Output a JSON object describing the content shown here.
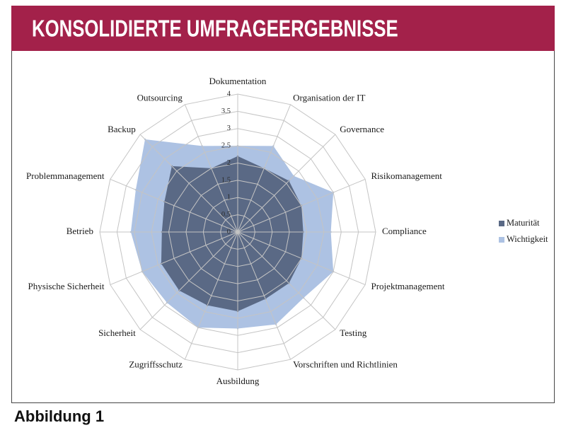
{
  "banner": {
    "title": "KONSOLIDIERTE UMFRAGEERGEBNISSE"
  },
  "caption": "Abbildung 1",
  "colors": {
    "banner": "#A3214A"
  },
  "chart_data": {
    "type": "radar",
    "categories": [
      "Dokumentation",
      "Organisation der IT",
      "Governance",
      "Risikomanagement",
      "Compliance",
      "Projektmanagement",
      "Testing",
      "Vorschriften und Richtlinien",
      "Ausbildung",
      "Zugriffsschutz",
      "Sicherheit",
      "Physische Sicherheit",
      "Betrieb",
      "Problemmanagement",
      "Backup",
      "Outsourcing"
    ],
    "r_ticks": [
      0,
      0.5,
      1,
      1.5,
      2,
      2.5,
      3,
      3.5,
      4
    ],
    "rlim": [
      0,
      4
    ],
    "grid": true,
    "legend_position": "right",
    "series": [
      {
        "name": "Maturität",
        "color": "#5A6985",
        "values": [
          2.2,
          2.0,
          2.1,
          2.0,
          1.9,
          2.0,
          2.1,
          2.1,
          2.3,
          2.3,
          2.4,
          2.4,
          2.2,
          2.3,
          2.7,
          2.0
        ]
      },
      {
        "name": "Wichtigkeit",
        "color": "#ADC2E3",
        "values": [
          2.5,
          2.7,
          2.3,
          3.0,
          2.7,
          3.0,
          2.7,
          2.9,
          2.8,
          3.0,
          2.9,
          3.0,
          3.1,
          3.2,
          3.8,
          2.7
        ]
      }
    ]
  }
}
